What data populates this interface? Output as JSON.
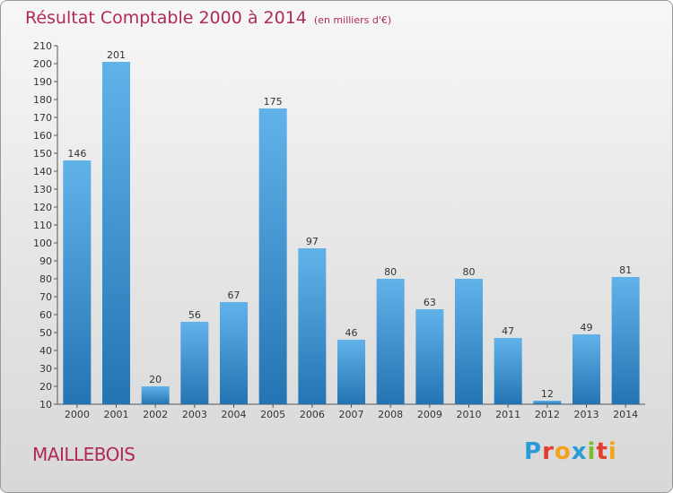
{
  "title": {
    "main": "Résultat Comptable 2000 à 2014",
    "sub": "(en milliers d'€)"
  },
  "town": "MAILLEBOIS",
  "logo": {
    "text": "Proxiti",
    "letters": [
      {
        "ch": "P",
        "color": "#2a9bd6"
      },
      {
        "ch": "r",
        "color": "#e63c2f"
      },
      {
        "ch": "o",
        "color": "#f4a21c"
      },
      {
        "ch": "x",
        "color": "#2a9bd6"
      },
      {
        "ch": "i",
        "color": "#7dbb2f"
      },
      {
        "ch": "t",
        "color": "#e63c2f"
      },
      {
        "ch": "i",
        "color": "#f4a21c"
      }
    ]
  },
  "colors": {
    "bar_top": "#62b2ea",
    "bar_bottom": "#2474b3",
    "title": "#b02a55"
  },
  "chart_data": {
    "type": "bar",
    "categories": [
      "2000",
      "2001",
      "2002",
      "2003",
      "2004",
      "2005",
      "2006",
      "2007",
      "2008",
      "2009",
      "2010",
      "2011",
      "2012",
      "2013",
      "2014"
    ],
    "values": [
      146,
      201,
      20,
      56,
      67,
      175,
      97,
      46,
      80,
      63,
      80,
      47,
      12,
      49,
      81
    ],
    "ylim": [
      10,
      210
    ],
    "yticks": [
      10,
      20,
      30,
      40,
      50,
      60,
      70,
      80,
      90,
      100,
      110,
      120,
      130,
      140,
      150,
      160,
      170,
      180,
      190,
      200,
      210
    ],
    "grid": false,
    "data_labels": true
  }
}
